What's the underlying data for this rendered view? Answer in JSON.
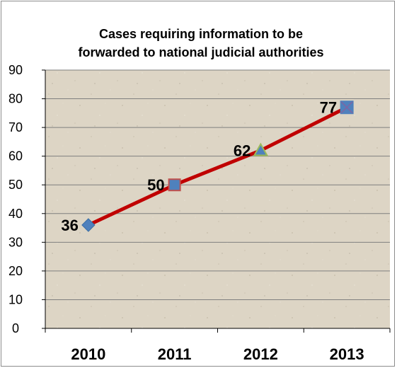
{
  "chart_data": {
    "type": "line",
    "title_lines": [
      "Cases requiring information to be",
      "forwarded to national judicial authorities"
    ],
    "categories": [
      "2010",
      "2011",
      "2012",
      "2013"
    ],
    "values": [
      36,
      50,
      62,
      77
    ],
    "xlabel": "",
    "ylabel": "",
    "ylim": [
      0,
      90
    ],
    "yticks": [
      0,
      10,
      20,
      30,
      40,
      50,
      60,
      70,
      80,
      90
    ],
    "grid": true,
    "legend": "none",
    "markers": [
      "diamond",
      "square",
      "triangle",
      "x-square"
    ],
    "colors": {
      "line": "#c00000",
      "marker_blue": "#4f81bd",
      "marker_red": "#c0504d",
      "marker_green": "#9bbb59",
      "marker_purple": "#8064a2",
      "plot_bg": "#ddd5c5",
      "grid": "#7f7f7f"
    }
  }
}
